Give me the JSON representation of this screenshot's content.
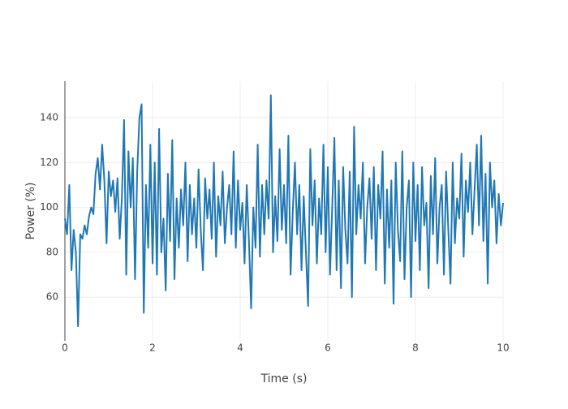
{
  "chart_data": {
    "type": "line",
    "x_label": "Time (s)",
    "y_label": "Power (%)",
    "x": [
      0,
      0.05,
      0.1,
      0.15,
      0.2,
      0.25,
      0.3,
      0.35,
      0.4,
      0.45,
      0.5,
      0.55,
      0.6,
      0.65,
      0.7,
      0.75,
      0.8,
      0.85,
      0.9,
      0.95,
      1,
      1.05,
      1.1,
      1.15,
      1.2,
      1.25,
      1.3,
      1.35,
      1.4,
      1.45,
      1.5,
      1.55,
      1.6,
      1.65,
      1.7,
      1.75,
      1.8,
      1.85,
      1.9,
      1.95,
      2,
      2.05,
      2.1,
      2.15,
      2.2,
      2.25,
      2.3,
      2.35,
      2.4,
      2.45,
      2.5,
      2.55,
      2.6,
      2.65,
      2.7,
      2.75,
      2.8,
      2.85,
      2.9,
      2.95,
      3,
      3.05,
      3.1,
      3.15,
      3.2,
      3.25,
      3.3,
      3.35,
      3.4,
      3.45,
      3.5,
      3.55,
      3.6,
      3.65,
      3.7,
      3.75,
      3.8,
      3.85,
      3.9,
      3.95,
      4,
      4.05,
      4.1,
      4.15,
      4.2,
      4.25,
      4.3,
      4.35,
      4.4,
      4.45,
      4.5,
      4.55,
      4.6,
      4.65,
      4.7,
      4.75,
      4.8,
      4.85,
      4.9,
      4.95,
      5,
      5.05,
      5.1,
      5.15,
      5.2,
      5.25,
      5.3,
      5.35,
      5.4,
      5.45,
      5.5,
      5.55,
      5.6,
      5.65,
      5.7,
      5.75,
      5.8,
      5.85,
      5.9,
      5.95,
      6,
      6.05,
      6.1,
      6.15,
      6.2,
      6.25,
      6.3,
      6.35,
      6.4,
      6.45,
      6.5,
      6.55,
      6.6,
      6.65,
      6.7,
      6.75,
      6.8,
      6.85,
      6.9,
      6.95,
      7,
      7.05,
      7.1,
      7.15,
      7.2,
      7.25,
      7.3,
      7.35,
      7.4,
      7.45,
      7.5,
      7.55,
      7.6,
      7.65,
      7.7,
      7.75,
      7.8,
      7.85,
      7.9,
      7.95,
      8,
      8.05,
      8.1,
      8.15,
      8.2,
      8.25,
      8.3,
      8.35,
      8.4,
      8.45,
      8.5,
      8.55,
      8.6,
      8.65,
      8.7,
      8.75,
      8.8,
      8.85,
      8.9,
      8.95,
      9,
      9.05,
      9.1,
      9.15,
      9.2,
      9.25,
      9.3,
      9.35,
      9.4,
      9.45,
      9.5,
      9.55,
      9.6,
      9.65,
      9.7,
      9.75,
      9.8,
      9.85,
      9.9,
      9.95,
      10
    ],
    "series": [
      {
        "color": "#1f77b4",
        "values": [
          95,
          88,
          110,
          72,
          90,
          80,
          47,
          88,
          86,
          92,
          88,
          96,
          100,
          97,
          115,
          122,
          108,
          128,
          112,
          84,
          116,
          105,
          112,
          98,
          113,
          86,
          104,
          139,
          70,
          125,
          100,
          122,
          68,
          116,
          140,
          146,
          53,
          110,
          82,
          128,
          75,
          120,
          70,
          135,
          80,
          95,
          63,
          115,
          85,
          130,
          68,
          104,
          82,
          108,
          92,
          120,
          76,
          110,
          88,
          104,
          82,
          117,
          90,
          72,
          113,
          95,
          108,
          86,
          120,
          78,
          105,
          92,
          116,
          84,
          100,
          110,
          88,
          125,
          82,
          112,
          90,
          102,
          75,
          110,
          85,
          55,
          100,
          82,
          128,
          78,
          110,
          88,
          112,
          95,
          150,
          80,
          105,
          85,
          126,
          90,
          110,
          84,
          132,
          70,
          98,
          120,
          88,
          110,
          72,
          105,
          80,
          56,
          126,
          92,
          112,
          75,
          104,
          88,
          128,
          80,
          118,
          70,
          100,
          131,
          72,
          112,
          64,
          118,
          90,
          75,
          116,
          60,
          136,
          88,
          110,
          95,
          120,
          75,
          100,
          113,
          86,
          118,
          72,
          110,
          95,
          125,
          66,
          108,
          82,
          112,
          57,
          120,
          90,
          76,
          125,
          68,
          100,
          112,
          60,
          120,
          85,
          110,
          72,
          118,
          92,
          102,
          64,
          114,
          88,
          122,
          75,
          100,
          110,
          70,
          116,
          90,
          66,
          120,
          84,
          104,
          95,
          124,
          78,
          112,
          98,
          120,
          88,
          108,
          128,
          92,
          132,
          85,
          115,
          66,
          120,
          100,
          112,
          84,
          106,
          92,
          102
        ]
      }
    ],
    "xlim": [
      0,
      10
    ],
    "ylim": [
      40.5,
      156.3
    ],
    "xticks": [
      0,
      2,
      4,
      6,
      8,
      10
    ],
    "yticks": [
      60,
      80,
      100,
      120,
      140
    ],
    "grid": true
  }
}
